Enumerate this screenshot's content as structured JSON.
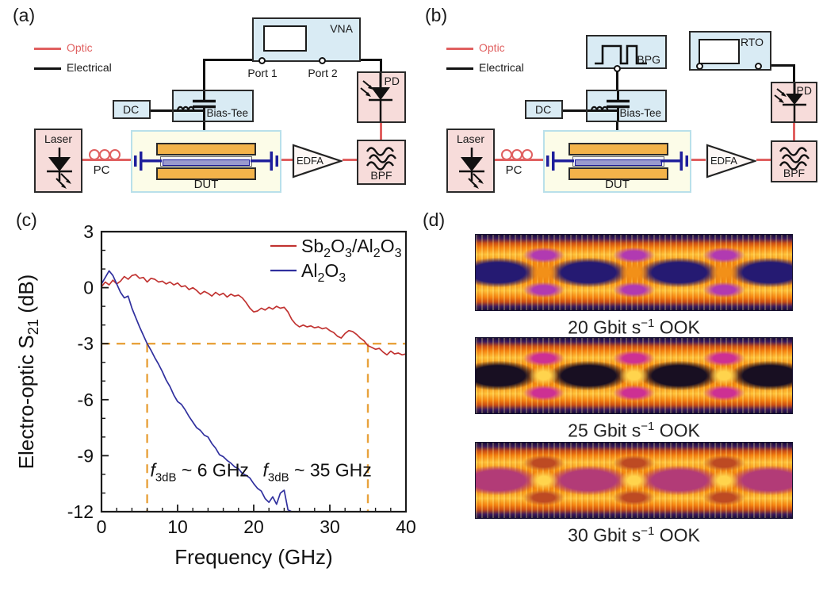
{
  "panels": {
    "a": "(a)",
    "b": "(b)",
    "c": "(c)",
    "d": "(d)"
  },
  "palette": {
    "box_blue": "#d9ebf4",
    "box_pink": "#f7dcda",
    "dut_bg": "#fcfce8",
    "dut_border": "#b9e0ea",
    "electrode": "#f3b34a",
    "waveguide_core": "#9a9ace",
    "coupler_blue": "#1e1e9c",
    "optic_red": "#e06060",
    "ink": "#1a1a1a",
    "dashed_orange": "#e8a23c"
  },
  "setup_a": {
    "legend": {
      "optic": "Optic",
      "electrical": "Electrical"
    },
    "instrument": "VNA",
    "port1": "Port 1",
    "port2": "Port 2",
    "dc": "DC",
    "bias_tee": "Bias-Tee",
    "laser": "Laser",
    "pc": "PC",
    "dut": "DUT",
    "edfa": "EDFA",
    "bpf": "BPF",
    "pd": "PD"
  },
  "setup_b": {
    "legend": {
      "optic": "Optic",
      "electrical": "Electrical"
    },
    "pattern_generator": "BPG",
    "oscilloscope": "RTO",
    "dc": "DC",
    "bias_tee": "Bias-Tee",
    "laser": "Laser",
    "pc": "PC",
    "dut": "DUT",
    "edfa": "EDFA",
    "bpf": "BPF",
    "pd": "PD"
  },
  "chart_data": {
    "type": "line",
    "xlabel": "Frequency (GHz)",
    "ylabel": "Electro-optic S21 (dB)",
    "xlim": [
      0,
      40
    ],
    "ylim": [
      -12,
      3
    ],
    "xticks": [
      0,
      10,
      20,
      30,
      40
    ],
    "yticks": [
      3,
      0,
      -3,
      -6,
      -9,
      -12
    ],
    "grid": false,
    "legend_position": "top-right",
    "series": [
      {
        "name": "Sb2O3/Al2O3",
        "color": "#c13331",
        "x_start": 0,
        "x_step": 0.5,
        "y": [
          0.05,
          0.3,
          0.15,
          0.4,
          0.2,
          0.35,
          0.6,
          0.45,
          0.65,
          0.7,
          0.5,
          0.55,
          0.3,
          0.5,
          0.45,
          0.3,
          0.35,
          0.2,
          0.3,
          0.15,
          0.25,
          0.05,
          0.1,
          -0.1,
          0.0,
          -0.15,
          -0.35,
          -0.2,
          -0.3,
          -0.45,
          -0.25,
          -0.4,
          -0.3,
          -0.5,
          -0.35,
          -0.45,
          -0.4,
          -0.55,
          -0.8,
          -1.1,
          -1.3,
          -1.25,
          -1.1,
          -1.2,
          -1.05,
          -1.15,
          -1.0,
          -1.1,
          -1.05,
          -1.3,
          -1.7,
          -1.95,
          -2.1,
          -2.0,
          -2.1,
          -2.05,
          -2.15,
          -2.1,
          -2.2,
          -2.15,
          -2.3,
          -2.4,
          -2.6,
          -2.7,
          -2.45,
          -2.3,
          -2.35,
          -2.5,
          -2.7,
          -2.85,
          -3.1,
          -3.2,
          -3.3,
          -3.25,
          -3.45,
          -3.6,
          -3.4,
          -3.55,
          -3.5,
          -3.6,
          -3.55
        ]
      },
      {
        "name": "Al2O3",
        "color": "#30309e",
        "x_start": 0,
        "x_step": 0.5,
        "y": [
          0.2,
          0.55,
          0.9,
          0.65,
          0.2,
          -0.25,
          -0.55,
          -0.45,
          -1.1,
          -1.6,
          -2.1,
          -2.55,
          -3.0,
          -3.35,
          -3.75,
          -4.1,
          -4.5,
          -4.95,
          -5.3,
          -5.75,
          -6.1,
          -6.25,
          -6.55,
          -6.9,
          -7.2,
          -7.5,
          -7.65,
          -7.9,
          -8.0,
          -8.35,
          -8.6,
          -8.95,
          -9.05,
          -9.25,
          -9.4,
          -9.6,
          -9.7,
          -9.95,
          -10.05,
          -10.2,
          -10.5,
          -10.75,
          -10.9,
          -11.3,
          -11.5,
          -11.2,
          -11.6,
          -11.0,
          -10.85,
          -11.9,
          -12.4
        ]
      }
    ],
    "reference": {
      "color": "#e8a23c",
      "horizontal_dB": -3,
      "vertical_GHz": [
        6,
        35
      ]
    },
    "annotations": [
      {
        "prefix": "f",
        "sub": "3dB",
        "rest": " ~ 6 GHz",
        "x": 6.4,
        "y": -10.1
      },
      {
        "prefix": "f",
        "sub": "3dB",
        "rest": " ~ 35 GHz",
        "x": 21.2,
        "y": -10.1
      }
    ]
  },
  "panel_d": {
    "diagrams": [
      {
        "label_pre": "20 Gbit s",
        "label_sup": "−1",
        "label_post": " OOK",
        "colors": {
          "eye": "#251a72",
          "spot": "#b13ab1",
          "cross": "#f29018"
        }
      },
      {
        "label_pre": "25 Gbit s",
        "label_sup": "−1",
        "label_post": " OOK",
        "colors": {
          "eye": "#180f22",
          "spot": "#cd3093",
          "cross": "#ffd44d"
        }
      },
      {
        "label_pre": "30 Gbit s",
        "label_sup": "−1",
        "label_post": " OOK",
        "colors": {
          "eye": "#b23b77",
          "spot": "#bd4a23",
          "cross": "#ffd44d"
        }
      }
    ]
  }
}
